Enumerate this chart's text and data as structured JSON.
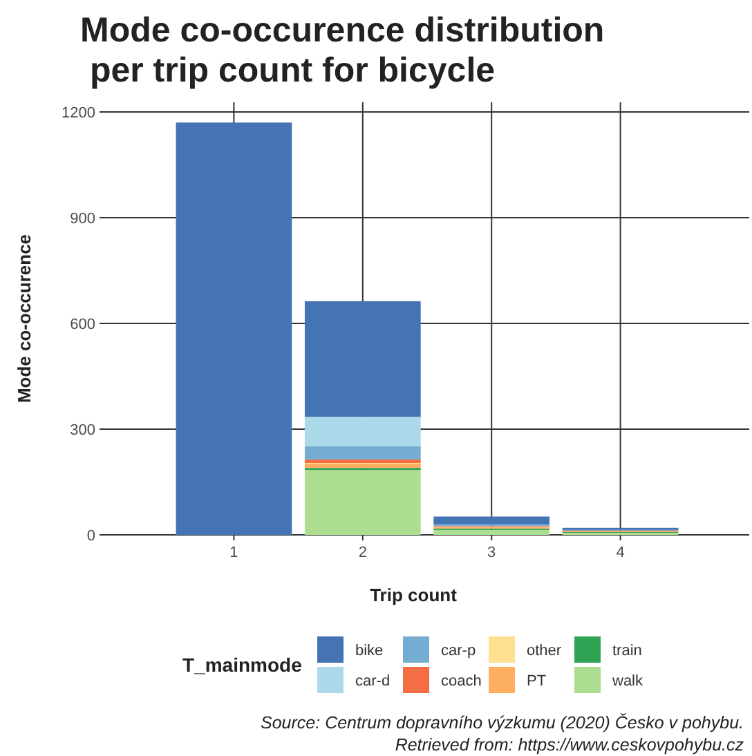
{
  "chart_data": {
    "type": "bar",
    "title": "Mode co-occurence distribution\n per trip count for bicycle",
    "xlabel": "Trip count",
    "ylabel": "Mode co-occurence",
    "legend_title": "T_mainmode",
    "categories": [
      "1",
      "2",
      "3",
      "4"
    ],
    "stacked": true,
    "ylim": [
      0,
      1200
    ],
    "yticks": [
      0,
      300,
      600,
      900,
      1200
    ],
    "grid": true,
    "legend": "bottom",
    "series": [
      {
        "name": "walk",
        "color": "#addd8e",
        "values": [
          0,
          184,
          14,
          6
        ]
      },
      {
        "name": "train",
        "color": "#31a354",
        "values": [
          0,
          6,
          4,
          2
        ]
      },
      {
        "name": "PT",
        "color": "#fdae61",
        "values": [
          0,
          12,
          4,
          2
        ]
      },
      {
        "name": "other",
        "color": "#fee090",
        "values": [
          0,
          2,
          1,
          0
        ]
      },
      {
        "name": "coach",
        "color": "#f46d43",
        "values": [
          0,
          10,
          2,
          2
        ]
      },
      {
        "name": "car-p",
        "color": "#74add1",
        "values": [
          0,
          37,
          5,
          2
        ]
      },
      {
        "name": "car-d",
        "color": "#abd9e9",
        "values": [
          0,
          84,
          null,
          null
        ]
      },
      {
        "name": "bike",
        "color": "#4574b4",
        "values": [
          1170,
          328,
          22,
          6
        ]
      }
    ],
    "annotations": [
      "Source: Centrum dopravního výzkumu (2020) Česko v pohybu.",
      "Retrieved from: https://www.ceskovpohybu.cz"
    ]
  }
}
